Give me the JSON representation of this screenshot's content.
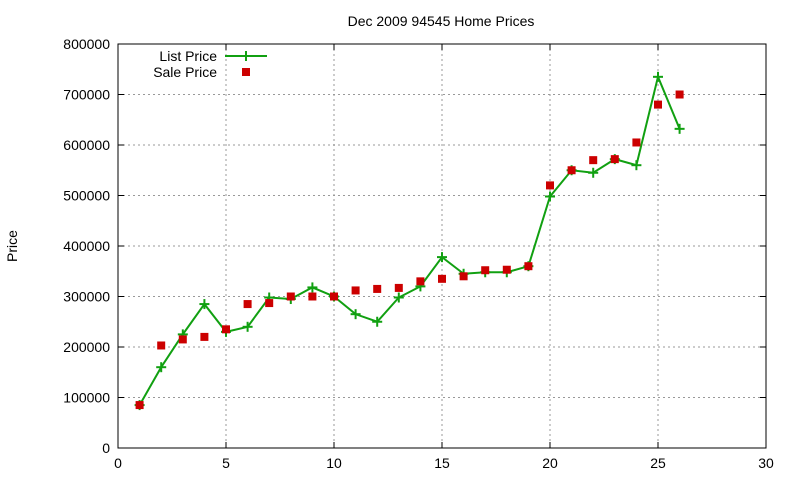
{
  "chart_data": {
    "type": "line",
    "title": "Dec 2009 94545 Home Prices",
    "xlabel": "",
    "ylabel": "Price",
    "xlim": [
      0,
      30
    ],
    "ylim": [
      0,
      800000
    ],
    "xticks": [
      0,
      5,
      10,
      15,
      20,
      25,
      30
    ],
    "yticks": [
      0,
      100000,
      200000,
      300000,
      400000,
      500000,
      600000,
      700000,
      800000
    ],
    "grid": true,
    "legend_position": "top-left",
    "series": [
      {
        "name": "List Price",
        "style": "line+cross",
        "color": "#11a011",
        "x": [
          1,
          2,
          3,
          4,
          5,
          6,
          7,
          8,
          9,
          10,
          11,
          12,
          13,
          14,
          15,
          16,
          17,
          18,
          19,
          20,
          21,
          22,
          23,
          24,
          25,
          26
        ],
        "y": [
          85000,
          160000,
          225000,
          285000,
          230000,
          240000,
          298000,
          295000,
          318000,
          300000,
          265000,
          250000,
          298000,
          320000,
          378000,
          345000,
          348000,
          348000,
          360000,
          498000,
          550000,
          545000,
          572000,
          560000,
          735000,
          632000
        ]
      },
      {
        "name": "Sale Price",
        "style": "square",
        "color": "#cc0000",
        "x": [
          1,
          2,
          3,
          4,
          5,
          6,
          7,
          8,
          9,
          10,
          11,
          12,
          13,
          14,
          15,
          16,
          17,
          18,
          19,
          20,
          21,
          22,
          23,
          24,
          25,
          26
        ],
        "y": [
          85000,
          203000,
          215000,
          220000,
          235000,
          285000,
          287000,
          300000,
          300000,
          300000,
          312000,
          315000,
          317000,
          330000,
          335000,
          340000,
          352000,
          353000,
          360000,
          520000,
          550000,
          570000,
          572000,
          605000,
          680000,
          700000
        ]
      }
    ]
  }
}
